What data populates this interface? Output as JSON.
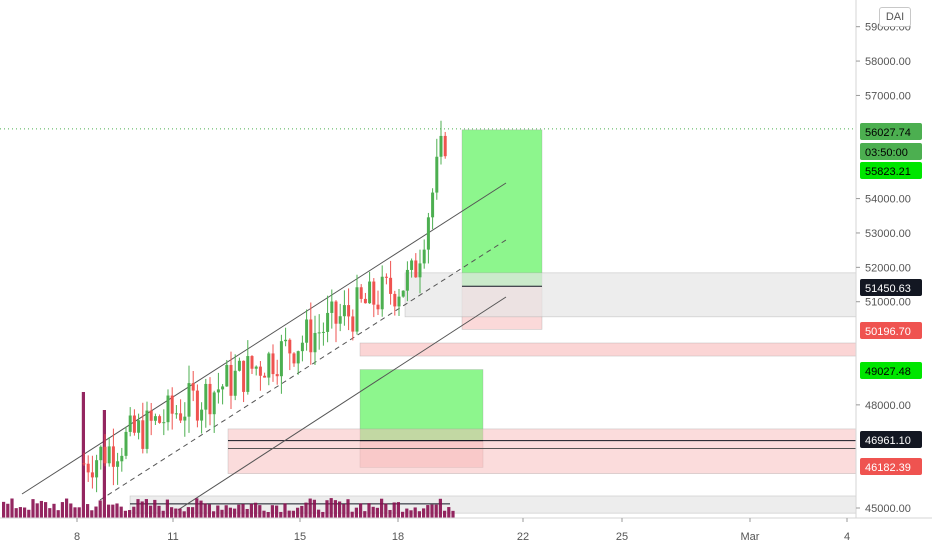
{
  "chart_data": {
    "type": "candlestick",
    "symbol_badge": "DAI",
    "y_ticks": [
      "59000.00",
      "58000.00",
      "57000.00",
      "54000.00",
      "53000.00",
      "52000.00",
      "51000.00",
      "48000.00",
      "45000.00"
    ],
    "x_ticks": [
      "8",
      "11",
      "15",
      "18",
      "22",
      "25",
      "Mar",
      "4"
    ],
    "price_labels": [
      {
        "value": "56027.74",
        "color": "#4caf50",
        "text_color": "#000000"
      },
      {
        "value": "03:50:00",
        "color": "#4caf50",
        "text_color": "#000000"
      },
      {
        "value": "55823.21",
        "color": "#00e600",
        "text_color": "#000000"
      },
      {
        "value": "51450.63",
        "color": "#131722",
        "text_color": "#ffffff"
      },
      {
        "value": "50196.70",
        "color": "#ef5350",
        "text_color": "#ffffff"
      },
      {
        "value": "49027.48",
        "color": "#00e600",
        "text_color": "#000000"
      },
      {
        "value": "46961.10",
        "color": "#131722",
        "text_color": "#ffffff"
      },
      {
        "value": "46182.39",
        "color": "#ef5350",
        "text_color": "#ffffff"
      }
    ],
    "colors": {
      "up": "#4caf50",
      "down": "#ef5350",
      "volume": "#880e4f",
      "zone_red": "#f8b9b9",
      "zone_green": "#79f479",
      "zone_grey": "#e6e6e6"
    }
  }
}
